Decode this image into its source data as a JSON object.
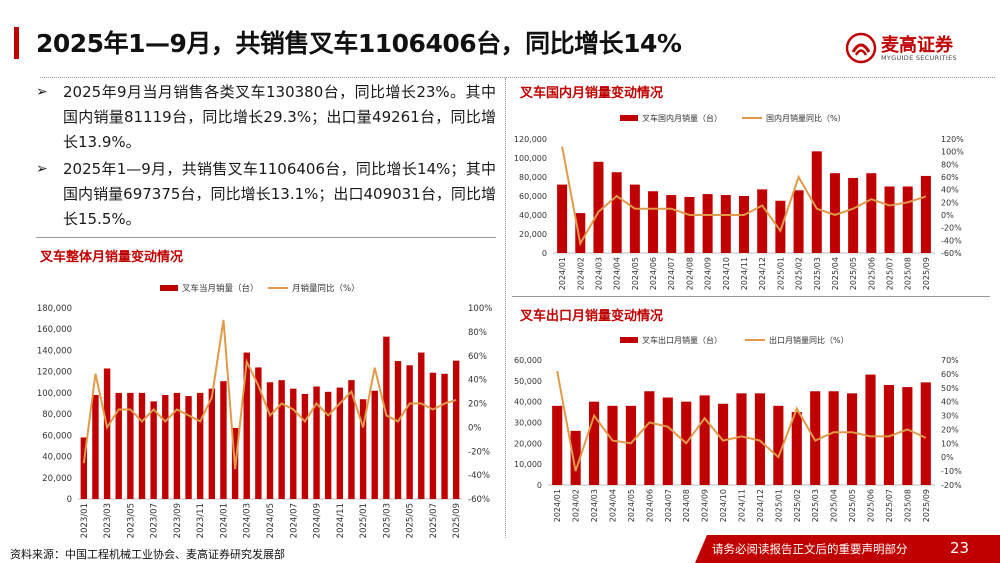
{
  "header": {
    "title": "2025年1—9月，共销售叉车1106406台，同比增长14%",
    "logo_text": "麦高证券",
    "logo_sub": "MYGUIDE SECURITIES"
  },
  "bullets": [
    "2025年9月当月销售各类叉车130380台，同比增长23%。其中国内销量81119台，同比增长29.3%；出口量49261台，同比增长13.9%。",
    "2025年1—9月，共销售叉车1106406台，同比增长14%；其中国内销量697375台，同比增长13.1%；出口409031台，同比增长15.5%。"
  ],
  "panels": {
    "overall": "叉车整体月销量变动情况",
    "domestic": "叉车国内月销量变动情况",
    "export": "叉车出口月销量变动情况"
  },
  "footer": {
    "source": "资料来源：中国工程机械工业协会、麦高证券研究发展部",
    "note": "请务必阅读报告正文后的重要声明部分",
    "page": "23"
  },
  "colors": {
    "bar": "#c00000",
    "line": "#e09a4a",
    "accent": "#c00000"
  },
  "chart_data": [
    {
      "id": "overall",
      "type": "bar",
      "categories": [
        "2023/01",
        "2023/02",
        "2023/03",
        "2023/04",
        "2023/05",
        "2023/06",
        "2023/07",
        "2023/08",
        "2023/09",
        "2023/10",
        "2023/11",
        "2023/12",
        "2024/01",
        "2024/02",
        "2024/03",
        "2024/04",
        "2024/05",
        "2024/06",
        "2024/07",
        "2024/08",
        "2024/09",
        "2024/10",
        "2024/11",
        "2024/12",
        "2025/01",
        "2025/02",
        "2025/03",
        "2025/04",
        "2025/05",
        "2025/06",
        "2025/07",
        "2025/08",
        "2025/09"
      ],
      "xticks": [
        "2023/01",
        "2023/03",
        "2023/05",
        "2023/07",
        "2023/09",
        "2023/11",
        "2024/01",
        "2024/03",
        "2024/05",
        "2024/07",
        "2024/09",
        "2024/11",
        "2025/01",
        "2025/03",
        "2025/05",
        "2025/07",
        "2025/09"
      ],
      "series": [
        {
          "name": "叉车当月销量（台）",
          "axis": "left",
          "kind": "bar",
          "values": [
            58000,
            98000,
            123000,
            100000,
            100000,
            100000,
            92000,
            98000,
            100000,
            97000,
            100000,
            104000,
            111000,
            67000,
            138000,
            124000,
            110000,
            112000,
            104000,
            99000,
            106000,
            101000,
            105000,
            112000,
            94000,
            102000,
            153000,
            130000,
            126000,
            138000,
            119000,
            118000,
            130380
          ]
        },
        {
          "name": "月销量同比（%）",
          "axis": "right",
          "kind": "line",
          "values": [
            -30,
            45,
            0,
            15,
            15,
            5,
            15,
            5,
            15,
            10,
            5,
            25,
            90,
            -35,
            55,
            35,
            10,
            20,
            15,
            5,
            20,
            10,
            20,
            30,
            0,
            50,
            10,
            5,
            20,
            20,
            15,
            20,
            23
          ]
        }
      ],
      "ylim": [
        0,
        180000
      ],
      "yticks": [
        0,
        20000,
        40000,
        60000,
        80000,
        100000,
        120000,
        140000,
        160000,
        180000
      ],
      "ylim_right": [
        -60,
        100
      ],
      "yticks_right": [
        -60,
        -40,
        -20,
        0,
        20,
        40,
        60,
        80,
        100
      ]
    },
    {
      "id": "domestic",
      "type": "bar",
      "categories": [
        "2024/01",
        "2024/02",
        "2024/03",
        "2024/04",
        "2024/05",
        "2024/06",
        "2024/07",
        "2024/08",
        "2024/09",
        "2024/10",
        "2024/11",
        "2024/12",
        "2025/01",
        "2025/02",
        "2025/03",
        "2025/04",
        "2025/05",
        "2025/06",
        "2025/07",
        "2025/08",
        "2025/09"
      ],
      "xticks": [
        "2024/01",
        "2024/02",
        "2024/03",
        "2024/04",
        "2024/05",
        "2024/06",
        "2024/07",
        "2024/08",
        "2024/09",
        "2024/10",
        "2024/11",
        "2024/12",
        "2025/01",
        "2025/02",
        "2025/03",
        "2025/04",
        "2025/05",
        "2025/06",
        "2025/07",
        "2025/08",
        "2025/09"
      ],
      "series": [
        {
          "name": "叉车国内月销量（台）",
          "axis": "left",
          "kind": "bar",
          "values": [
            72000,
            42000,
            96000,
            85000,
            72000,
            65000,
            61000,
            59000,
            62000,
            61000,
            60000,
            67000,
            55000,
            66000,
            107000,
            84000,
            79000,
            84000,
            70000,
            70000,
            81119
          ]
        },
        {
          "name": "国内月销量同比（%）",
          "axis": "right",
          "kind": "line",
          "values": [
            108,
            -45,
            5,
            30,
            10,
            10,
            10,
            0,
            0,
            0,
            0,
            15,
            -25,
            60,
            10,
            0,
            10,
            25,
            15,
            20,
            29.3
          ]
        }
      ],
      "ylim": [
        0,
        120000
      ],
      "yticks": [
        0,
        20000,
        40000,
        60000,
        80000,
        100000,
        120000
      ],
      "ylim_right": [
        -60,
        120
      ],
      "yticks_right": [
        -60,
        -40,
        -20,
        0,
        20,
        40,
        60,
        80,
        100,
        120
      ]
    },
    {
      "id": "export",
      "type": "bar",
      "categories": [
        "2024/01",
        "2024/02",
        "2024/03",
        "2024/04",
        "2024/05",
        "2024/06",
        "2024/07",
        "2024/08",
        "2024/09",
        "2024/10",
        "2024/11",
        "2024/12",
        "2025/01",
        "2025/02",
        "2025/03",
        "2025/04",
        "2025/05",
        "2025/06",
        "2025/07",
        "2025/08",
        "2025/09"
      ],
      "xticks": [
        "2024/01",
        "2024/02",
        "2024/03",
        "2024/04",
        "2024/05",
        "2024/06",
        "2024/07",
        "2024/08",
        "2024/09",
        "2024/10",
        "2024/11",
        "2024/12",
        "2025/01",
        "2025/02",
        "2025/03",
        "2025/04",
        "2025/05",
        "2025/06",
        "2025/07",
        "2025/08",
        "2025/09"
      ],
      "series": [
        {
          "name": "叉车出口月销量（台）",
          "axis": "left",
          "kind": "bar",
          "values": [
            38000,
            26000,
            40000,
            38000,
            38000,
            45000,
            42000,
            40000,
            43000,
            39000,
            44000,
            44000,
            38000,
            35000,
            45000,
            45000,
            44000,
            53000,
            48000,
            47000,
            49261
          ]
        },
        {
          "name": "出口月销量同比（%）",
          "axis": "right",
          "kind": "line",
          "values": [
            62,
            -10,
            30,
            12,
            10,
            25,
            22,
            10,
            28,
            12,
            15,
            12,
            0,
            35,
            12,
            18,
            18,
            15,
            15,
            20,
            13.9
          ]
        }
      ],
      "ylim": [
        0,
        60000
      ],
      "yticks": [
        0,
        10000,
        20000,
        30000,
        40000,
        50000,
        60000
      ],
      "ylim_right": [
        -20,
        70
      ],
      "yticks_right": [
        -20,
        -10,
        0,
        10,
        20,
        30,
        40,
        50,
        60,
        70
      ]
    }
  ]
}
